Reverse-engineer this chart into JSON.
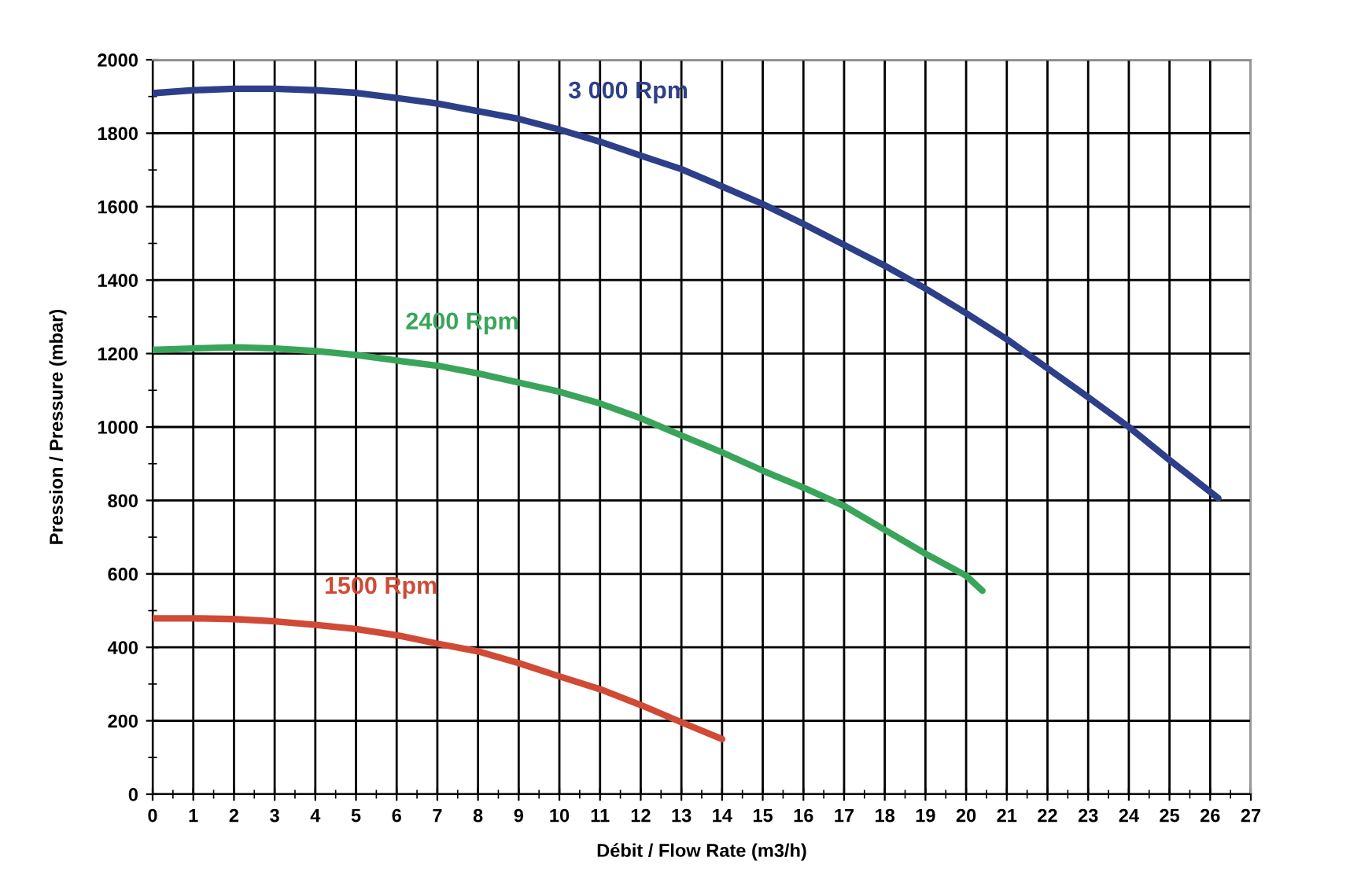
{
  "chart_data": {
    "type": "line",
    "xlabel": "Débit / Flow Rate (m3/h)",
    "ylabel": "Pression / Pressure (mbar)",
    "xlim": [
      0,
      27
    ],
    "xticks": [
      0,
      1,
      2,
      3,
      4,
      5,
      6,
      7,
      8,
      9,
      10,
      11,
      12,
      13,
      14,
      15,
      16,
      17,
      18,
      19,
      20,
      21,
      22,
      23,
      24,
      25,
      26,
      27
    ],
    "ylim": [
      0,
      2000
    ],
    "yticks": [
      0,
      200,
      400,
      600,
      800,
      1000,
      1200,
      1400,
      1600,
      1800,
      2000
    ],
    "grid": true,
    "marker": "none",
    "line_style": "solid",
    "series": [
      {
        "name": "3 000 Rpm",
        "color": "#2e3f8a",
        "x": [
          0,
          1,
          2,
          3,
          4,
          5,
          6,
          7,
          8,
          9,
          10,
          11,
          12,
          13,
          14,
          15,
          16,
          17,
          18,
          19,
          20,
          21,
          22,
          23,
          24,
          25,
          26.2
        ],
        "values": [
          1909,
          1917,
          1921,
          1921,
          1917,
          1910,
          1896,
          1881,
          1860,
          1839,
          1810,
          1777,
          1739,
          1702,
          1655,
          1607,
          1553,
          1496,
          1439,
          1377,
          1310,
          1239,
          1160,
          1081,
          1000,
          910,
          806
        ]
      },
      {
        "name": "2400 Rpm",
        "color": "#3aa55a",
        "x": [
          0,
          1,
          2,
          3,
          4,
          5,
          6,
          7,
          8,
          9,
          10,
          11,
          12,
          13,
          14,
          15,
          16,
          17,
          18,
          19,
          20,
          20.4
        ],
        "values": [
          1210,
          1214,
          1217,
          1214,
          1207,
          1196,
          1181,
          1167,
          1146,
          1121,
          1096,
          1064,
          1024,
          977,
          931,
          881,
          835,
          785,
          720,
          655,
          595,
          554
        ]
      },
      {
        "name": "1500 Rpm",
        "color": "#d04a36",
        "x": [
          0,
          1,
          2,
          3,
          4,
          5,
          6,
          7,
          8,
          9,
          10,
          11,
          12,
          13,
          14
        ],
        "values": [
          479,
          479,
          477,
          471,
          461,
          450,
          433,
          410,
          389,
          357,
          321,
          286,
          243,
          196,
          150
        ]
      }
    ]
  }
}
